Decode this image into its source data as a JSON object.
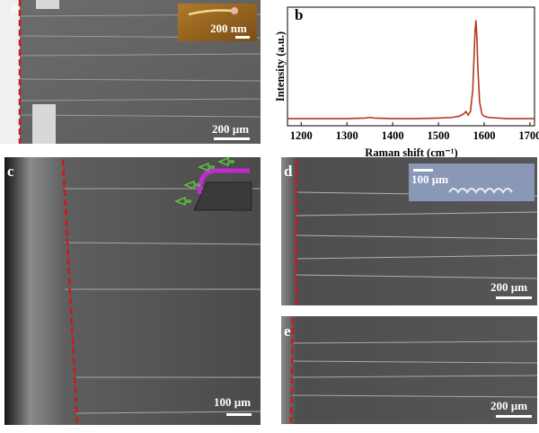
{
  "panels": {
    "a": {
      "label": "a",
      "inset_scale": "200 nm",
      "scale": "200 µm"
    },
    "c": {
      "label": "c",
      "scale": "100 µm"
    },
    "d": {
      "label": "d",
      "inset_scale": "100 µm",
      "scale": "200 µm"
    },
    "e": {
      "label": "e",
      "scale": "200 µm"
    }
  },
  "chart_data": {
    "type": "line",
    "label": "b",
    "x_label": "Raman shift (cm⁻¹)",
    "y_label": "Intensity (a.u.)",
    "x": [
      1170,
      1250,
      1300,
      1340,
      1350,
      1360,
      1400,
      1450,
      1500,
      1530,
      1545,
      1555,
      1560,
      1565,
      1570,
      1575,
      1578,
      1580,
      1582,
      1584,
      1586,
      1590,
      1595,
      1600,
      1610,
      1650,
      1700,
      1710
    ],
    "values": [
      6,
      6,
      6,
      6.5,
      7,
      6.5,
      6,
      6,
      6.5,
      7,
      8,
      10,
      12,
      9,
      12,
      30,
      60,
      80,
      89,
      75,
      50,
      20,
      10,
      8,
      7,
      6,
      6,
      6
    ],
    "color": "#b5371c",
    "xlim": [
      1170,
      1710
    ],
    "ylim": [
      0,
      100
    ],
    "xticks": [
      1200,
      1300,
      1400,
      1500,
      1600,
      1700
    ]
  }
}
